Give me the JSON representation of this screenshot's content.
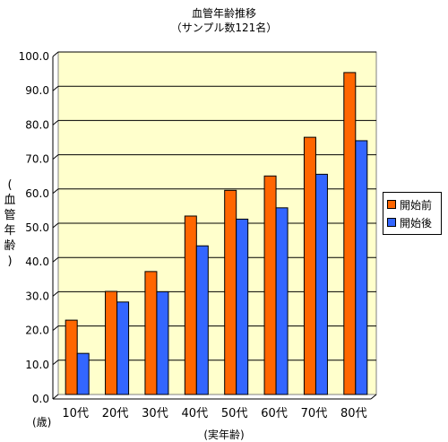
{
  "chart_data": {
    "type": "bar",
    "title": "血管年齢推移",
    "subtitle": "（サンプル数121名）",
    "xlabel": "(実年齢)",
    "x_unit_label": "(歳)",
    "ylabel_chars": [
      "(",
      "血",
      "管",
      "年",
      "齢",
      ")"
    ],
    "categories": [
      "10代",
      "20代",
      "30代",
      "40代",
      "50代",
      "60代",
      "70代",
      "80代"
    ],
    "series": [
      {
        "name": "開始前",
        "color": "#ff6600",
        "values": [
          21.7,
          30.1,
          35.9,
          52.1,
          59.6,
          63.8,
          75.1,
          94.0
        ]
      },
      {
        "name": "開始後",
        "color": "#3366ff",
        "values": [
          12.0,
          27.0,
          30.0,
          43.4,
          51.2,
          54.5,
          64.3,
          74.1
        ]
      }
    ],
    "ylim": [
      0,
      100
    ],
    "yticks": [
      "0.0",
      "10.0",
      "20.0",
      "30.0",
      "40.0",
      "50.0",
      "60.0",
      "70.0",
      "80.0",
      "90.0",
      "100.0"
    ],
    "plot_background": "#ffffcc",
    "grid": true,
    "legend_position": "right"
  }
}
